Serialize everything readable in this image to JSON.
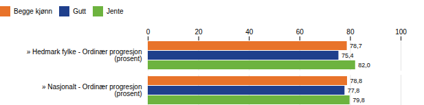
{
  "chart_data": {
    "type": "bar",
    "orientation": "horizontal",
    "categories": [
      "» Hedmark fylke - Ordinær progresjon\n(prosent)",
      "» Nasjonalt - Ordinær progresjon\n(prosent)"
    ],
    "series": [
      {
        "name": "Begge kjønn",
        "color": "#E8732A",
        "values": [
          78.7,
          78.8
        ],
        "value_labels": [
          "78,7",
          "78,8"
        ]
      },
      {
        "name": "Gutt",
        "color": "#1F3F8C",
        "values": [
          75.4,
          77.8
        ],
        "value_labels": [
          "75,4",
          "77,8"
        ]
      },
      {
        "name": "Jente",
        "color": "#6DB33F",
        "values": [
          82.0,
          79.8
        ],
        "value_labels": [
          "82,0",
          "79,8"
        ]
      }
    ],
    "xlim": [
      0,
      100
    ],
    "xticks": [
      0,
      20,
      40,
      60,
      80,
      100
    ],
    "grid": true,
    "legend": "top",
    "data_labels": true
  }
}
